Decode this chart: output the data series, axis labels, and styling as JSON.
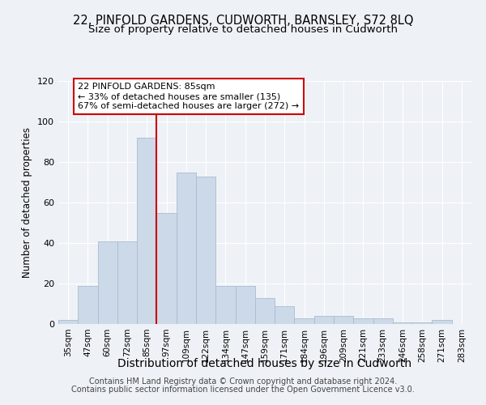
{
  "title": "22, PINFOLD GARDENS, CUDWORTH, BARNSLEY, S72 8LQ",
  "subtitle": "Size of property relative to detached houses in Cudworth",
  "xlabel": "Distribution of detached houses by size in Cudworth",
  "ylabel": "Number of detached properties",
  "bar_labels": [
    "35sqm",
    "47sqm",
    "60sqm",
    "72sqm",
    "85sqm",
    "97sqm",
    "109sqm",
    "122sqm",
    "134sqm",
    "147sqm",
    "159sqm",
    "171sqm",
    "184sqm",
    "196sqm",
    "209sqm",
    "221sqm",
    "233sqm",
    "246sqm",
    "258sqm",
    "271sqm",
    "283sqm"
  ],
  "bar_values": [
    2,
    19,
    41,
    41,
    92,
    55,
    75,
    73,
    19,
    19,
    13,
    9,
    3,
    4,
    4,
    3,
    3,
    1,
    1,
    2,
    0
  ],
  "bar_color": "#ccd9e8",
  "bar_edge_color": "#aabcce",
  "vline_x": 4.5,
  "vline_color": "#cc0000",
  "annotation_line1": "22 PINFOLD GARDENS: 85sqm",
  "annotation_line2": "← 33% of detached houses are smaller (135)",
  "annotation_line3": "67% of semi-detached houses are larger (272) →",
  "annotation_box_color": "#ffffff",
  "annotation_box_edge": "#cc0000",
  "ylim": [
    0,
    120
  ],
  "yticks": [
    0,
    20,
    40,
    60,
    80,
    100,
    120
  ],
  "footer_line1": "Contains HM Land Registry data © Crown copyright and database right 2024.",
  "footer_line2": "Contains public sector information licensed under the Open Government Licence v3.0.",
  "background_color": "#eef2f7",
  "plot_background": "#eef2f7",
  "grid_color": "#ffffff",
  "title_fontsize": 10.5,
  "subtitle_fontsize": 9.5,
  "xlabel_fontsize": 10,
  "ylabel_fontsize": 8.5,
  "tick_fontsize": 7.5,
  "footer_fontsize": 7
}
